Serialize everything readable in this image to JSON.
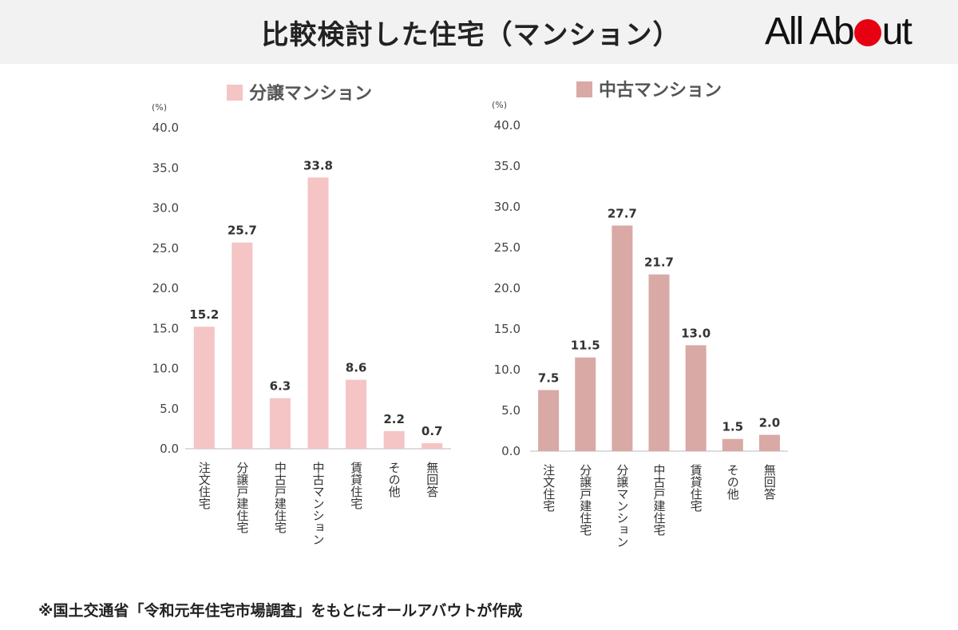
{
  "title": "比較検討した住宅（マンション）",
  "logo": {
    "text_left": "All Ab",
    "text_right": "ut",
    "accent": "#e60012"
  },
  "footnote": "※国土交通省「令和元年住宅市場調査」をもとにオールアバウトが作成",
  "chart_data": [
    {
      "type": "bar",
      "title": "分譲マンション",
      "unit": "(%)",
      "color": "#f5c4c4",
      "ylim": [
        0,
        40
      ],
      "yticks": [
        "0.0",
        "5.0",
        "10.0",
        "15.0",
        "20.0",
        "25.0",
        "30.0",
        "35.0",
        "40.0"
      ],
      "categories": [
        "注文住宅",
        "分譲戸建住宅",
        "中古戸建住宅",
        "中古マンション",
        "賃貸住宅",
        "その他",
        "無回答"
      ],
      "values": [
        15.2,
        25.7,
        6.3,
        33.8,
        8.6,
        2.2,
        0.7
      ],
      "value_labels": [
        "15.2",
        "25.7",
        "6.3",
        "33.8",
        "8.6",
        "2.2",
        "0.7"
      ],
      "grid": false,
      "legend": "top"
    },
    {
      "type": "bar",
      "title": "中古マンション",
      "unit": "(%)",
      "color": "#d9a9a6",
      "ylim": [
        0,
        40
      ],
      "yticks": [
        "0.0",
        "5.0",
        "10.0",
        "15.0",
        "20.0",
        "25.0",
        "30.0",
        "35.0",
        "40.0"
      ],
      "categories": [
        "注文住宅",
        "分譲戸建住宅",
        "分譲マンション",
        "中古戸建住宅",
        "賃貸住宅",
        "その他",
        "無回答"
      ],
      "values": [
        7.5,
        11.5,
        27.7,
        21.7,
        13.0,
        1.5,
        2.0
      ],
      "value_labels": [
        "7.5",
        "11.5",
        "27.7",
        "21.7",
        "13.0",
        "1.5",
        "2.0"
      ],
      "grid": false,
      "legend": "top"
    }
  ]
}
